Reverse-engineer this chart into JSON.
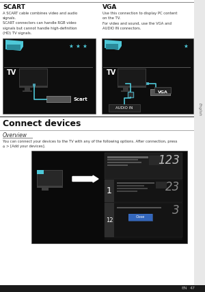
{
  "content_bg": "#ffffff",
  "dark_img_bg": "#0d0d0d",
  "cyan_color": "#4ec8d8",
  "title_scart": "SCART",
  "title_vga": "VGA",
  "text_scart": "A SCART cable combines video and audio\nsignals.\nSCART connectors can handle RGB video\nsignals but cannot handle high-definition\n(HD) TV signals.",
  "text_vga": "Use this connection to display PC content\non the TV.\nFor video and sound, use the VGA and\nAUDIO IN connectors.",
  "section_title": "Connect devices",
  "overview_title": "Overview",
  "overview_text": "You can connect your devices to the TV with any of the following options. After connection, press\n⌂ > [Add your devices].",
  "footer_en": "EN",
  "footer_num": "47",
  "side_tab_text": "English",
  "star_color": "#4ec8d8",
  "scart_label": "Scart",
  "vga_label": "VGA",
  "audio_label": "AUDIO IN",
  "tv_label": "TV",
  "separator_color": "#aaaaaa",
  "text_color": "#333333",
  "title_color": "#111111",
  "side_tab_bg": "#e8e8e8",
  "bottom_bar": "#1a1a1a"
}
